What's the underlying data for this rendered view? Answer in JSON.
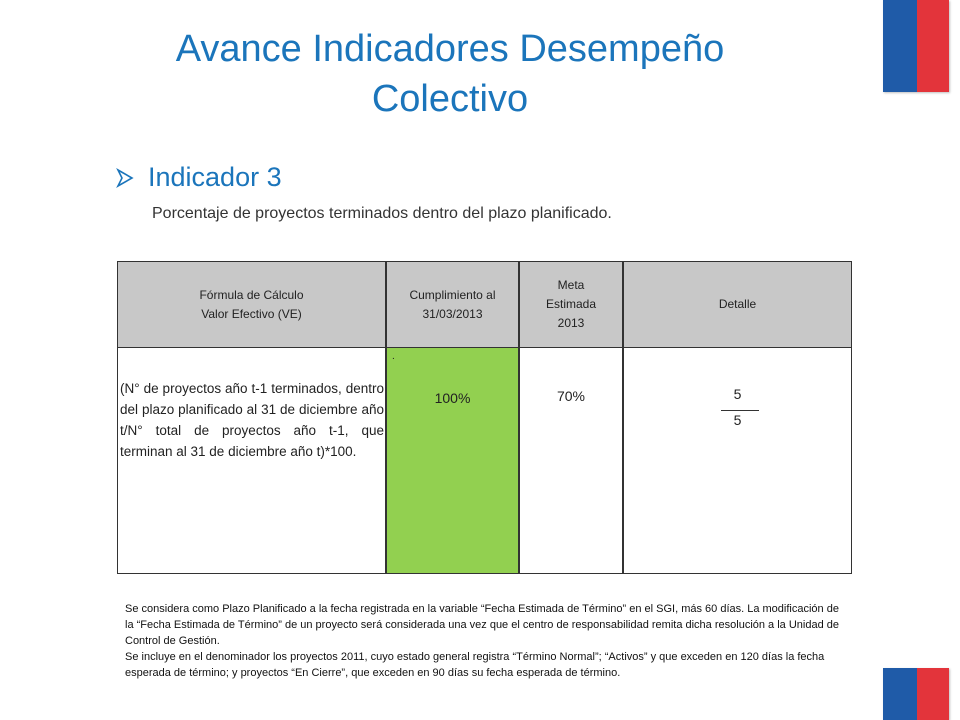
{
  "title": "Avance Indicadores Desempeño Colectivo",
  "indicator": {
    "label": "Indicador 3",
    "description": "Porcentaje de proyectos terminados dentro del plazo planificado."
  },
  "table": {
    "headers": {
      "formula_line1": "Fórmula de Cálculo",
      "formula_line2": "Valor Efectivo  (VE)",
      "cumplimiento": "Cumplimiento al 31/03/2013",
      "meta": "Meta Estimada 2013",
      "detalle": "Detalle"
    },
    "row": {
      "formula": "(N° de proyectos año t-1 terminados, dentro del plazo planificado al 31 de diciembre año t/N° total de proyectos año t-1, que terminan al 31 de diciembre año t)*100.",
      "cumplimiento": "100%",
      "cumplimiento_marker": ".",
      "meta": "70%",
      "detalle_numerator": "5",
      "detalle_denominator": "5"
    }
  },
  "notes": [
    "Se considera como Plazo Planificado a la fecha registrada en la variable “Fecha Estimada de Término” en el SGI, más 60 días. La modificación de la “Fecha Estimada de Término” de un proyecto será considerada una vez que el centro de responsabilidad remita dicha resolución a la Unidad de Control de Gestión.",
    "Se incluye en el denominador los proyectos 2011, cuyo estado general registra “Término Normal”; “Activos” y que exceden en 120 días la fecha esperada de término; y proyectos “En Cierre”, que exceden en 90 días su fecha esperada de término."
  ],
  "colors": {
    "title": "#1b75bb",
    "header_bg": "#c8c8c8",
    "cumplimiento_bg": "#92d050",
    "flag_blue": "#1f5ba8",
    "flag_red": "#e3343b"
  }
}
